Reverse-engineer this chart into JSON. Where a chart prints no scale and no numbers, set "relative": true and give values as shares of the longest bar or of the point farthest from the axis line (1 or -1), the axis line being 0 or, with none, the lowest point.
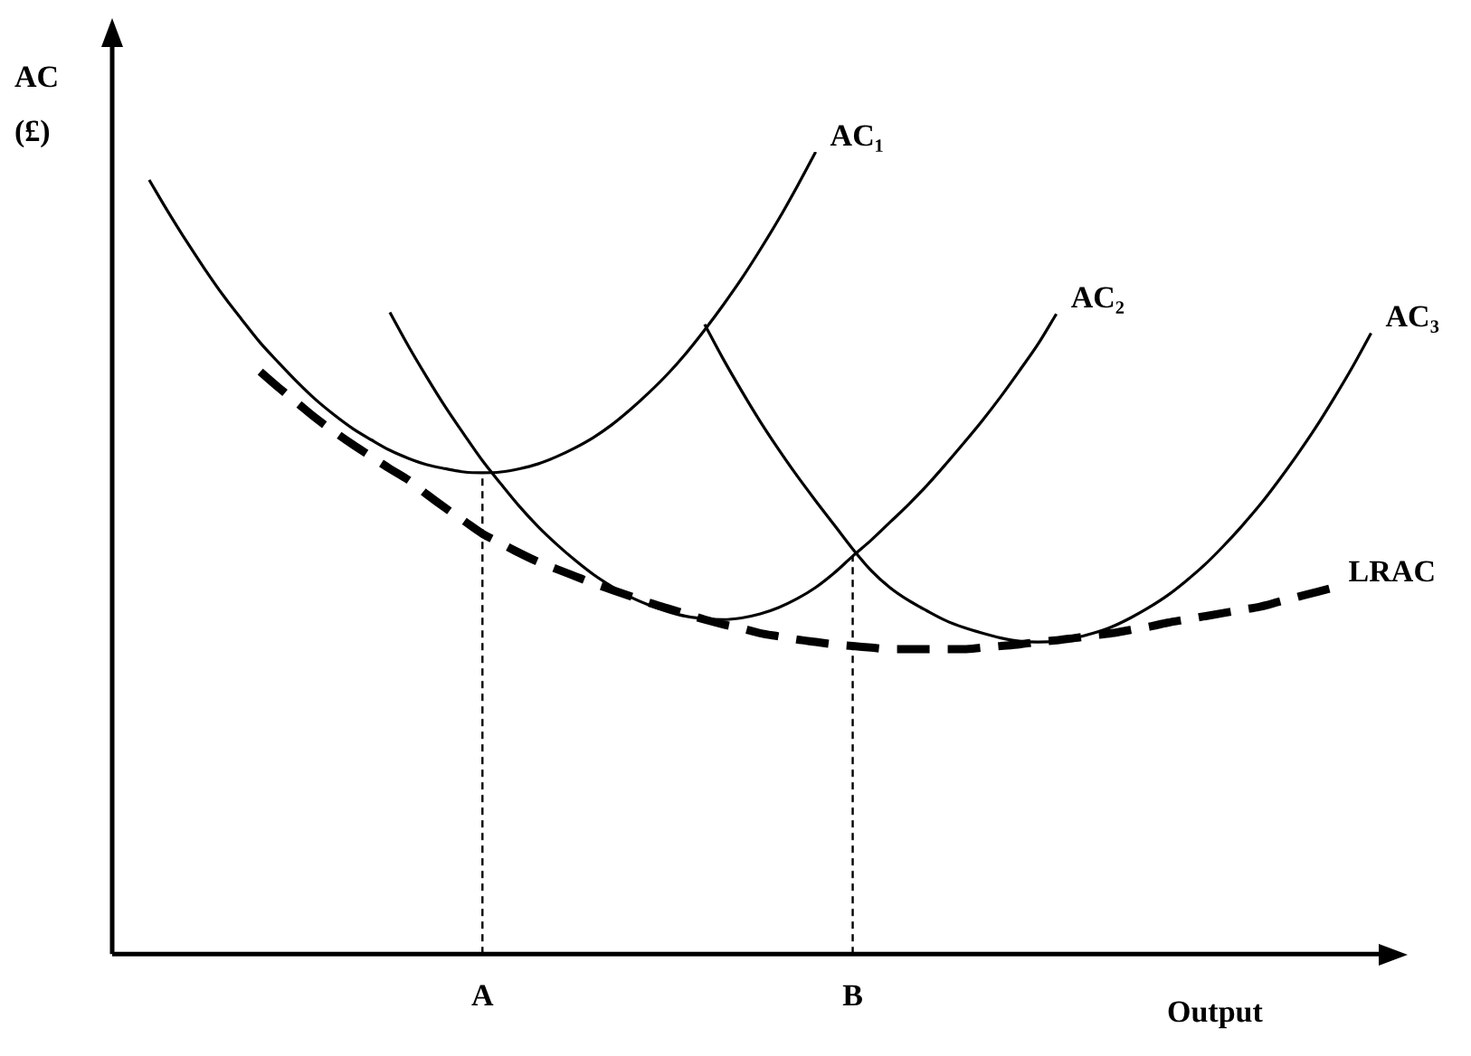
{
  "chart_data": {
    "type": "line",
    "relative": true,
    "xlabel": "Output",
    "ylabel": "AC (£)",
    "grid": false,
    "legend": false,
    "marker": "none",
    "categories": [
      null,
      null,
      null,
      null,
      null,
      null,
      null,
      null,
      null,
      null,
      null,
      null,
      null,
      null,
      null,
      null,
      null,
      null,
      null,
      null,
      "A",
      null,
      null,
      null,
      null,
      null,
      null,
      null,
      null,
      null,
      null,
      null,
      null,
      null,
      null,
      null,
      null,
      null,
      null,
      null,
      "B",
      null,
      null,
      null,
      null,
      null,
      null,
      null,
      null,
      null,
      null,
      null,
      null,
      null,
      null,
      null,
      null,
      null,
      null,
      null,
      null,
      null,
      null,
      null,
      null,
      null,
      null,
      null,
      null,
      null
    ],
    "ref_lines": [
      {
        "axis": "x",
        "value": "A",
        "line_style": "dashed",
        "color": "#000000"
      },
      {
        "axis": "x",
        "value": "B",
        "line_style": "dashed",
        "color": "#000000"
      }
    ],
    "series": [
      {
        "name": "AC₁",
        "color": "#000000",
        "line_style": "solid",
        "values": [
          null,
          null,
          0.965,
          0.926,
          0.889,
          0.854,
          0.821,
          0.791,
          0.762,
          0.737,
          0.713,
          0.691,
          0.672,
          0.655,
          0.641,
          0.628,
          0.618,
          0.61,
          0.605,
          0.601,
          0.6,
          0.601,
          0.605,
          0.611,
          0.62,
          0.631,
          0.644,
          0.66,
          0.679,
          0.7,
          0.723,
          0.749,
          0.778,
          0.809,
          0.842,
          0.878,
          0.916,
          0.957,
          1.0,
          null,
          null,
          null,
          null,
          null,
          null,
          null,
          null,
          null,
          null,
          null,
          null,
          null,
          null,
          null,
          null,
          null,
          null,
          null,
          null,
          null,
          null,
          null,
          null,
          null,
          null,
          null,
          null,
          null,
          null,
          null
        ]
      },
      {
        "name": "AC₂",
        "color": "#000000",
        "line_style": "solid",
        "values": [
          null,
          null,
          null,
          null,
          null,
          null,
          null,
          null,
          null,
          null,
          null,
          null,
          null,
          null,
          null,
          0.8,
          0.758,
          0.719,
          0.682,
          0.648,
          0.615,
          0.586,
          0.558,
          0.533,
          0.511,
          0.491,
          0.473,
          0.458,
          0.445,
          0.435,
          0.427,
          0.421,
          0.418,
          0.417,
          0.419,
          0.424,
          0.432,
          0.443,
          0.457,
          0.475,
          0.496,
          0.516,
          0.538,
          0.56,
          0.584,
          0.61,
          0.637,
          0.665,
          0.695,
          0.727,
          0.76,
          0.798,
          null,
          null,
          null,
          null,
          null,
          null,
          null,
          null,
          null,
          null,
          null,
          null,
          null,
          null,
          null,
          null,
          null,
          null
        ]
      },
      {
        "name": "AC₃",
        "color": "#000000",
        "line_style": "solid",
        "values": [
          null,
          null,
          null,
          null,
          null,
          null,
          null,
          null,
          null,
          null,
          null,
          null,
          null,
          null,
          null,
          null,
          null,
          null,
          null,
          null,
          null,
          null,
          null,
          null,
          null,
          null,
          null,
          null,
          null,
          null,
          null,
          null,
          0.785,
          0.742,
          0.702,
          0.664,
          0.629,
          0.596,
          0.565,
          0.535,
          0.505,
          0.478,
          0.457,
          0.441,
          0.428,
          0.416,
          0.407,
          0.4,
          0.394,
          0.39,
          0.389,
          0.39,
          0.394,
          0.4,
          0.408,
          0.419,
          0.432,
          0.447,
          0.465,
          0.485,
          0.508,
          0.533,
          0.56,
          0.59,
          0.622,
          0.656,
          0.693,
          0.732,
          0.774,
          null
        ]
      },
      {
        "name": "LRAC",
        "color": "#000000",
        "line_style": "dashed",
        "values": [
          null,
          null,
          null,
          null,
          null,
          null,
          null,
          null,
          0.726,
          0.706,
          0.687,
          0.668,
          0.651,
          0.635,
          0.62,
          0.605,
          0.591,
          0.573,
          0.556,
          0.54,
          0.524,
          0.512,
          0.5,
          0.489,
          0.48,
          0.471,
          0.462,
          0.454,
          0.446,
          0.438,
          0.431,
          0.424,
          0.417,
          0.411,
          0.406,
          0.4,
          0.396,
          0.392,
          0.389,
          0.386,
          0.384,
          0.382,
          0.38,
          0.38,
          0.38,
          0.38,
          0.38,
          0.382,
          0.384,
          0.386,
          0.389,
          0.391,
          0.394,
          0.397,
          0.4,
          0.404,
          0.408,
          0.413,
          0.417,
          0.421,
          0.425,
          0.429,
          0.433,
          0.439,
          0.445,
          0.451,
          0.457,
          null,
          null,
          null
        ]
      }
    ]
  }
}
